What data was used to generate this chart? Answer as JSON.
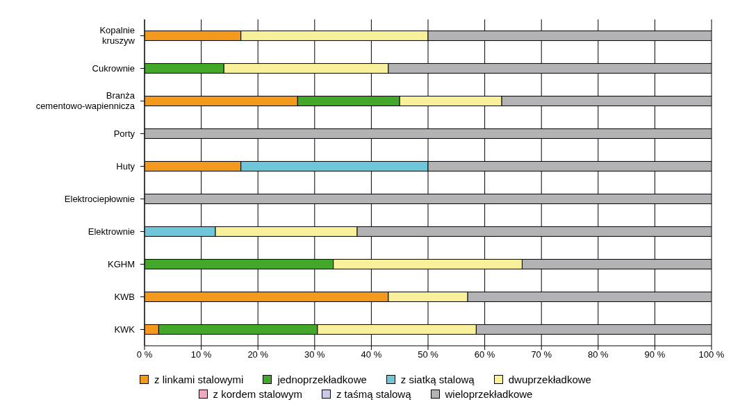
{
  "chart_data": {
    "type": "bar",
    "orientation": "horizontal",
    "stacked": true,
    "categories": [
      "Kopalnie kruszyw",
      "Cukrownie",
      "Branża cementowo-wapiennicza",
      "Porty",
      "Huty",
      "Elektrociepłownie",
      "Elektrownie",
      "KGHM",
      "KWB",
      "KWK"
    ],
    "series": [
      {
        "name": "z linkami stalowymi",
        "color": "#f39a1e",
        "values": [
          17,
          0,
          27,
          0,
          17,
          0,
          0,
          0,
          43,
          2.5
        ]
      },
      {
        "name": "jednoprzekładkowe",
        "color": "#43a72a",
        "values": [
          0,
          14,
          18,
          0,
          0,
          0,
          0,
          33.3,
          0,
          28
        ]
      },
      {
        "name": "z siatką stalową",
        "color": "#6fc6d9",
        "values": [
          0,
          0,
          0,
          0,
          33,
          0,
          12.5,
          0,
          0,
          0
        ]
      },
      {
        "name": "dwuprzekładkowe",
        "color": "#f9f09b",
        "values": [
          33,
          29,
          18,
          0,
          0,
          0,
          25,
          33.3,
          14,
          28
        ]
      },
      {
        "name": "z kordem stalowym",
        "color": "#f2a6c2",
        "values": [
          0,
          0,
          0,
          0,
          0,
          0,
          0,
          0,
          0,
          0
        ]
      },
      {
        "name": "z taśmą stalową",
        "color": "#c9c9e6",
        "values": [
          0,
          0,
          0,
          0,
          0,
          0,
          0,
          0,
          0,
          0
        ]
      },
      {
        "name": "wieloprzekładkowe",
        "color": "#b3b3b5",
        "values": [
          50,
          57,
          37,
          100,
          50,
          100,
          62.5,
          33.4,
          43,
          41.5
        ]
      }
    ],
    "xlim": [
      0,
      100
    ],
    "xticks": [
      {
        "value": 0,
        "label": "0 %"
      },
      {
        "value": 10,
        "label": "10 %"
      },
      {
        "value": 20,
        "label": "20 %"
      },
      {
        "value": 30,
        "label": "30 %"
      },
      {
        "value": 40,
        "label": "40 %"
      },
      {
        "value": 50,
        "label": "50 %"
      },
      {
        "value": 60,
        "label": "60 %"
      },
      {
        "value": 70,
        "label": "70 %"
      },
      {
        "value": 80,
        "label": "80 %"
      },
      {
        "value": 90,
        "label": "90 %"
      },
      {
        "value": 100,
        "label": "100 %"
      }
    ],
    "grid": "x",
    "legend": "bottom"
  }
}
